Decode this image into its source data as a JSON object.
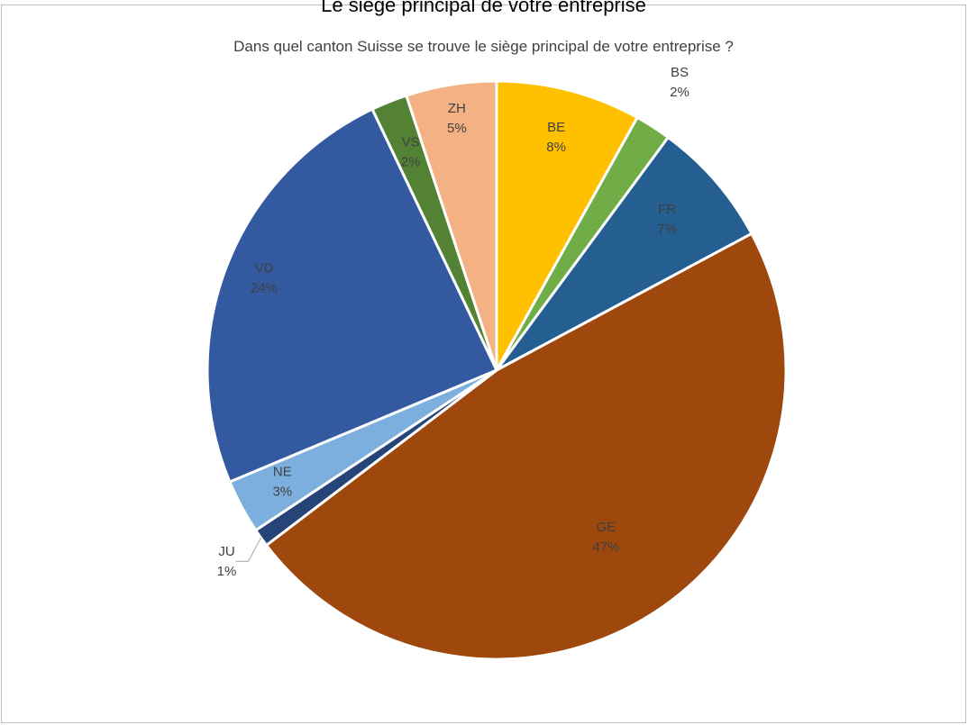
{
  "top_title": "Le siège principal de votre entreprise",
  "chart_data": {
    "type": "pie",
    "title": "Dans quel canton Suisse se trouve le siège principal de votre entreprise ?",
    "slices": [
      {
        "label": "BE",
        "value": 8,
        "display": "8%",
        "color": "#FFC000"
      },
      {
        "label": "BS",
        "value": 2,
        "display": "2%",
        "color": "#70AD47"
      },
      {
        "label": "FR",
        "value": 7,
        "display": "7%",
        "color": "#255E91"
      },
      {
        "label": "GE",
        "value": 47,
        "display": "47%",
        "color": "#9E480E"
      },
      {
        "label": "JU",
        "value": 1,
        "display": "1%",
        "color": "#264478"
      },
      {
        "label": "NE",
        "value": 3,
        "display": "3%",
        "color": "#7CAFDD"
      },
      {
        "label": "VD",
        "value": 24,
        "display": "24%",
        "color": "#335AA1"
      },
      {
        "label": "VS",
        "value": 2,
        "display": "2%",
        "color": "#548235"
      },
      {
        "label": "ZH",
        "value": 5,
        "display": "5%",
        "color": "#F4B183"
      }
    ]
  }
}
